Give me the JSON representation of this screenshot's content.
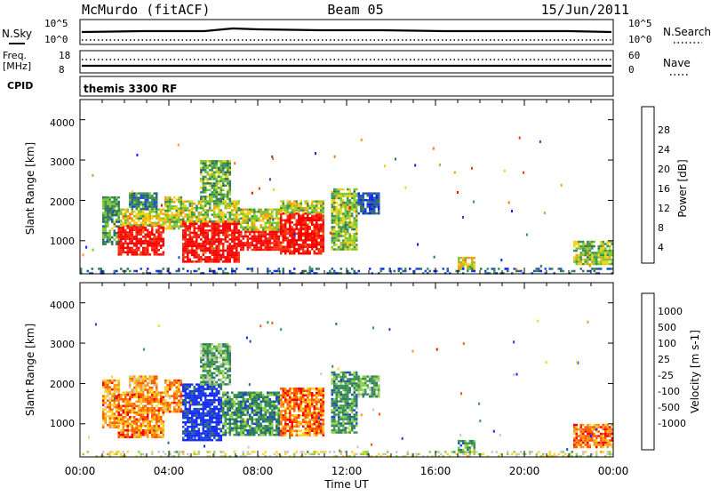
{
  "header": {
    "station": "McMurdo (fitACF)",
    "beam": "Beam 05",
    "date": "15/Jun/2011"
  },
  "noise_panel": {
    "left_label": "N.Sky",
    "left_ticks": [
      "10^5",
      "10^0"
    ],
    "right_label": "N.Search",
    "right_ticks": [
      "10^5",
      "10^0"
    ]
  },
  "freq_panel": {
    "left_label_1": "Freq.",
    "left_label_2": "[MHz]",
    "left_ticks": [
      "18",
      "8"
    ],
    "right_label": "Nave",
    "right_ticks": [
      "60",
      "0"
    ]
  },
  "cpid_panel": {
    "left_label": "CPID",
    "mode_text": "themis 3300 RF"
  },
  "colors": {
    "power": [
      "#0a1eff",
      "#1e4bd2",
      "#2e6e64",
      "#3c9152",
      "#7cc832",
      "#f0d214",
      "#f5a014",
      "#fa6e14",
      "#f53214",
      "#ff0000"
    ],
    "velocity": [
      "#ff0000",
      "#ff5a00",
      "#ff9614",
      "#ffd228",
      "#c8c8c8",
      "#8cd246",
      "#3c9650",
      "#2e7864",
      "#1e46c8",
      "#1428ff"
    ]
  },
  "chart_data": [
    {
      "type": "heatmap",
      "name": "Power",
      "xlabel": "",
      "ylabel": "Slant Range [km]",
      "xlim": [
        0,
        24
      ],
      "ylim": [
        180,
        4500
      ],
      "yticks": [
        "4000",
        "3000",
        "2000",
        "1000"
      ],
      "colorbar": {
        "label": "Power [dB]",
        "ticks": [
          "28",
          "24",
          "20",
          "16",
          "12",
          "8",
          "4"
        ],
        "range": [
          0,
          32
        ]
      },
      "regions": [
        {
          "t": [
            1.0,
            1.8
          ],
          "r": [
            900,
            2100
          ],
          "level": 0.35
        },
        {
          "t": [
            1.7,
            3.8
          ],
          "r": [
            650,
            1400
          ],
          "level": 0.95
        },
        {
          "t": [
            1.8,
            3.8
          ],
          "r": [
            1400,
            1800
          ],
          "level": 0.55
        },
        {
          "t": [
            2.2,
            3.5
          ],
          "r": [
            1800,
            2200
          ],
          "level": 0.3
        },
        {
          "t": [
            3.8,
            4.6
          ],
          "r": [
            1300,
            2100
          ],
          "level": 0.5
        },
        {
          "t": [
            4.6,
            7.2
          ],
          "r": [
            500,
            1500
          ],
          "level": 0.95
        },
        {
          "t": [
            4.6,
            7.2
          ],
          "r": [
            1500,
            2000
          ],
          "level": 0.5
        },
        {
          "t": [
            5.4,
            6.8
          ],
          "r": [
            2000,
            3000
          ],
          "level": 0.4
        },
        {
          "t": [
            7.2,
            9.0
          ],
          "r": [
            800,
            1300
          ],
          "level": 0.95
        },
        {
          "t": [
            7.2,
            9.0
          ],
          "r": [
            1300,
            1800
          ],
          "level": 0.5
        },
        {
          "t": [
            9.0,
            11.0
          ],
          "r": [
            700,
            1700
          ],
          "level": 0.95
        },
        {
          "t": [
            9.0,
            11.0
          ],
          "r": [
            1700,
            2000
          ],
          "level": 0.5
        },
        {
          "t": [
            11.3,
            12.5
          ],
          "r": [
            800,
            2300
          ],
          "level": 0.45
        },
        {
          "t": [
            12.5,
            13.5
          ],
          "r": [
            1700,
            2200
          ],
          "level": 0.15
        },
        {
          "t": [
            17.0,
            17.8
          ],
          "r": [
            300,
            600
          ],
          "level": 0.55
        },
        {
          "t": [
            22.2,
            24.0
          ],
          "r": [
            400,
            1000
          ],
          "level": 0.45
        },
        {
          "t": [
            0.0,
            24.0
          ],
          "r": [
            180,
            330
          ],
          "level": 0.2
        }
      ]
    },
    {
      "type": "heatmap",
      "name": "Velocity",
      "xlabel": "Time UT",
      "ylabel": "Slant Range [km]",
      "xlim": [
        0,
        24
      ],
      "ylim": [
        180,
        4500
      ],
      "xticks": [
        "00:00",
        "04:00",
        "08:00",
        "12:00",
        "16:00",
        "20:00",
        "00:00"
      ],
      "yticks": [
        "4000",
        "3000",
        "2000",
        "1000"
      ],
      "colorbar": {
        "label": "Velocity [m s-1]",
        "ticks": [
          "1000",
          "500",
          "100",
          "25",
          "-25",
          "-100",
          "-500",
          "-1000"
        ]
      },
      "regions": [
        {
          "t": [
            1.0,
            1.8
          ],
          "r": [
            900,
            2100
          ],
          "level": 0.25
        },
        {
          "t": [
            1.7,
            3.8
          ],
          "r": [
            650,
            1800
          ],
          "level": 0.22
        },
        {
          "t": [
            2.2,
            3.5
          ],
          "r": [
            1800,
            2200
          ],
          "level": 0.3
        },
        {
          "t": [
            3.8,
            4.6
          ],
          "r": [
            1300,
            2100
          ],
          "level": 0.25
        },
        {
          "t": [
            4.6,
            6.4
          ],
          "r": [
            600,
            2000
          ],
          "level": 0.92
        },
        {
          "t": [
            6.4,
            9.0
          ],
          "r": [
            700,
            1800
          ],
          "level": 0.68
        },
        {
          "t": [
            5.4,
            6.8
          ],
          "r": [
            2000,
            3000
          ],
          "level": 0.62
        },
        {
          "t": [
            9.0,
            11.0
          ],
          "r": [
            700,
            1900
          ],
          "level": 0.2
        },
        {
          "t": [
            11.3,
            12.5
          ],
          "r": [
            800,
            2300
          ],
          "level": 0.68
        },
        {
          "t": [
            12.5,
            13.5
          ],
          "r": [
            1700,
            2200
          ],
          "level": 0.62
        },
        {
          "t": [
            17.0,
            17.8
          ],
          "r": [
            300,
            600
          ],
          "level": 0.66
        },
        {
          "t": [
            22.2,
            24.0
          ],
          "r": [
            400,
            1000
          ],
          "level": 0.2
        },
        {
          "t": [
            0.0,
            24.0
          ],
          "r": [
            180,
            330
          ],
          "level": 0.45
        }
      ]
    }
  ]
}
